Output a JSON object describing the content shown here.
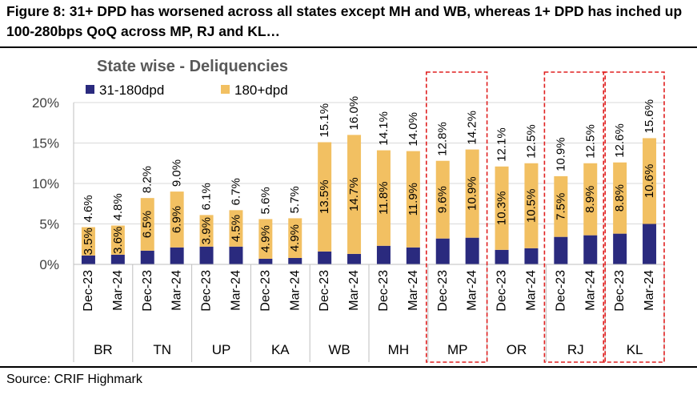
{
  "figure": {
    "title": "Figure 8:  31+ DPD has worsened across all states except MH and WB, whereas 1+ DPD has inched up 100-280bps QoQ across MP, RJ and KL…",
    "source": "Source: CRIF Highmark"
  },
  "colors": {
    "series_31_180": "#2a2a7e",
    "series_180_plus": "#f2c062",
    "highlight_box": "#e02020",
    "grid": "#d9d9d9"
  },
  "chart_data": {
    "type": "bar",
    "stacked": true,
    "title": "State wise - Deliquencies",
    "ylim": [
      0,
      20
    ],
    "yticks": [
      "0%",
      "5%",
      "10%",
      "15%",
      "20%"
    ],
    "grid": true,
    "legend_position": "top-left",
    "groups": [
      "BR",
      "TN",
      "UP",
      "KA",
      "WB",
      "MH",
      "MP",
      "OR",
      "RJ",
      "KL"
    ],
    "highlighted_groups": [
      "MP",
      "RJ",
      "KL"
    ],
    "periods": [
      "Dec-23",
      "Mar-24"
    ],
    "categories": [
      "BR Dec-23",
      "BR Mar-24",
      "TN Dec-23",
      "TN Mar-24",
      "UP Dec-23",
      "UP Mar-24",
      "KA Dec-23",
      "KA Mar-24",
      "WB Dec-23",
      "WB Mar-24",
      "MH Dec-23",
      "MH Mar-24",
      "MP Dec-23",
      "MP Mar-24",
      "OR Dec-23",
      "OR Mar-24",
      "RJ Dec-23",
      "RJ Mar-24",
      "KL Dec-23",
      "KL Mar-24"
    ],
    "series": [
      {
        "name": "31-180dpd",
        "values": [
          1.1,
          1.2,
          1.7,
          2.1,
          2.2,
          2.2,
          0.7,
          0.8,
          1.6,
          1.3,
          2.3,
          2.1,
          3.2,
          3.3,
          1.8,
          2.0,
          3.4,
          3.6,
          3.8,
          5.0
        ]
      },
      {
        "name": "180+dpd",
        "values": [
          3.5,
          3.6,
          6.5,
          6.9,
          3.9,
          4.5,
          4.9,
          4.9,
          13.5,
          14.7,
          11.8,
          11.9,
          9.6,
          10.9,
          10.3,
          10.5,
          7.5,
          8.9,
          8.8,
          10.6
        ],
        "labels": [
          "3.5%",
          "3.6%",
          "6.5%",
          "6.9%",
          "3.9%",
          "4.5%",
          "4.9%",
          "4.9%",
          "13.5%",
          "14.7%",
          "11.8%",
          "11.9%",
          "9.6%",
          "10.9%",
          "10.3%",
          "10.5%",
          "7.5%",
          "8.9%",
          "8.8%",
          "10.6%"
        ]
      }
    ],
    "totals": [
      4.6,
      4.8,
      8.2,
      9.0,
      6.1,
      6.7,
      5.6,
      5.7,
      15.1,
      16.0,
      14.1,
      14.0,
      12.8,
      14.2,
      12.1,
      12.5,
      10.9,
      12.5,
      12.6,
      15.6
    ],
    "total_labels": [
      "4.6%",
      "4.8%",
      "8.2%",
      "9.0%",
      "6.1%",
      "6.7%",
      "5.6%",
      "5.7%",
      "15.1%",
      "16.0%",
      "14.1%",
      "14.0%",
      "12.8%",
      "14.2%",
      "12.1%",
      "12.5%",
      "10.9%",
      "12.5%",
      "12.6%",
      "15.6%"
    ]
  }
}
